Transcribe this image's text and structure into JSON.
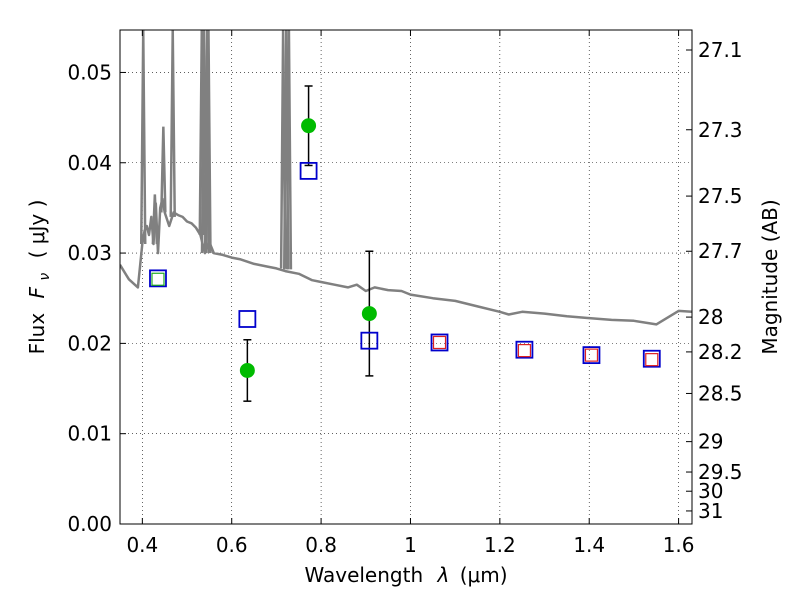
{
  "chart_data": {
    "type": "scatter",
    "xlabel": "Wavelength",
    "xlabel_symbol": "λ",
    "xlabel_unit": "(μm)",
    "ylabel": "Flux",
    "ylabel_symbol": "F",
    "ylabel_subscript": "ν",
    "ylabel_unit": "( μJy )",
    "y2label": "Magnitude (AB)",
    "xlim": [
      0.35,
      1.63
    ],
    "ylim": [
      0.0,
      0.0547
    ],
    "grid": true,
    "grid_style": "dotted",
    "x_ticks": [
      0.4,
      0.6,
      0.8,
      1.0,
      1.2,
      1.4,
      1.6
    ],
    "x_tick_labels": [
      "0.4",
      "0.6",
      "0.8",
      "1",
      "1.2",
      "1.4",
      "1.6"
    ],
    "y_ticks": [
      0.0,
      0.01,
      0.02,
      0.03,
      0.04,
      0.05
    ],
    "y_tick_labels": [
      "0.00",
      "0.01",
      "0.02",
      "0.03",
      "0.04",
      "0.05"
    ],
    "y2_ticks": [
      {
        "label": "27.1",
        "mag": 27.1
      },
      {
        "label": "27.3",
        "mag": 27.3
      },
      {
        "label": "27.5",
        "mag": 27.5
      },
      {
        "label": "27.7",
        "mag": 27.7
      },
      {
        "label": "28",
        "mag": 28.0
      },
      {
        "label": "28.2",
        "mag": 28.2
      },
      {
        "label": "28.5",
        "mag": 28.5
      },
      {
        "label": "29",
        "mag": 29.0
      },
      {
        "label": "29.5",
        "mag": 29.5
      },
      {
        "label": "30",
        "mag": 30.0
      },
      {
        "label": "31",
        "mag": 31.0
      }
    ],
    "series": [
      {
        "kind": "line",
        "color": "#808080",
        "x": [
          0.35,
          0.37,
          0.39,
          0.4,
          0.405,
          0.41,
          0.415,
          0.42,
          0.425,
          0.43,
          0.435,
          0.44,
          0.445,
          0.45,
          0.46,
          0.47,
          0.48,
          0.49,
          0.5,
          0.51,
          0.52,
          0.53,
          0.54,
          0.55,
          0.56,
          0.58,
          0.6,
          0.62,
          0.65,
          0.68,
          0.7,
          0.72,
          0.75,
          0.78,
          0.8,
          0.83,
          0.86,
          0.88,
          0.9,
          0.92,
          0.95,
          0.98,
          1.0,
          1.05,
          1.1,
          1.15,
          1.2,
          1.22,
          1.25,
          1.3,
          1.35,
          1.4,
          1.45,
          1.5,
          1.55,
          1.6,
          1.63
        ],
        "y": [
          0.0287,
          0.0271,
          0.0262,
          0.031,
          0.0325,
          0.033,
          0.032,
          0.034,
          0.031,
          0.0355,
          0.03,
          0.035,
          0.036,
          0.0345,
          0.033,
          0.0345,
          0.0342,
          0.034,
          0.0335,
          0.0333,
          0.0328,
          0.032,
          0.03,
          0.0312,
          0.03,
          0.0298,
          0.0295,
          0.0293,
          0.0288,
          0.0285,
          0.0283,
          0.028,
          0.0277,
          0.027,
          0.0268,
          0.0265,
          0.0262,
          0.0265,
          0.0258,
          0.0262,
          0.0259,
          0.0258,
          0.0254,
          0.025,
          0.0247,
          0.0241,
          0.0235,
          0.0232,
          0.0235,
          0.0233,
          0.023,
          0.0228,
          0.0226,
          0.0225,
          0.0221,
          0.0236,
          0.0235
        ]
      },
      {
        "kind": "emission-spikes",
        "color": "#808080",
        "x": [
          0.402,
          0.428,
          0.447,
          0.468,
          0.533,
          0.538,
          0.545,
          0.548,
          0.715,
          0.722,
          0.728
        ],
        "y_top": [
          0.0547,
          0.0365,
          0.044,
          0.0547,
          0.0547,
          0.0547,
          0.0547,
          0.0547,
          0.0547,
          0.0547,
          0.0547
        ],
        "y_base": [
          0.031,
          0.031,
          0.0345,
          0.034,
          0.032,
          0.03,
          0.03,
          0.03,
          0.0283,
          0.0282,
          0.0282
        ]
      },
      {
        "kind": "points",
        "marker": "circle",
        "color": "#00bb00",
        "x": [
          0.635,
          0.772,
          0.908
        ],
        "y": [
          0.017,
          0.0441,
          0.0233
        ],
        "yerr": [
          0.0034,
          0.0044,
          0.0069
        ]
      },
      {
        "kind": "points",
        "marker": "square",
        "color": "#0000cc",
        "x": [
          0.435,
          0.635,
          0.772,
          0.908,
          1.065,
          1.255,
          1.405,
          1.54
        ],
        "y": [
          0.0272,
          0.0227,
          0.0391,
          0.0203,
          0.0201,
          0.0193,
          0.0187,
          0.0183
        ]
      },
      {
        "kind": "points",
        "marker": "square-small",
        "color": "#22aa22",
        "x": [
          0.435
        ],
        "y": [
          0.0271
        ]
      },
      {
        "kind": "points",
        "marker": "square-small",
        "color": "#dd2222",
        "x": [
          1.065,
          1.255,
          1.405,
          1.54
        ],
        "y": [
          0.0201,
          0.0192,
          0.0187,
          0.0182
        ]
      }
    ]
  }
}
